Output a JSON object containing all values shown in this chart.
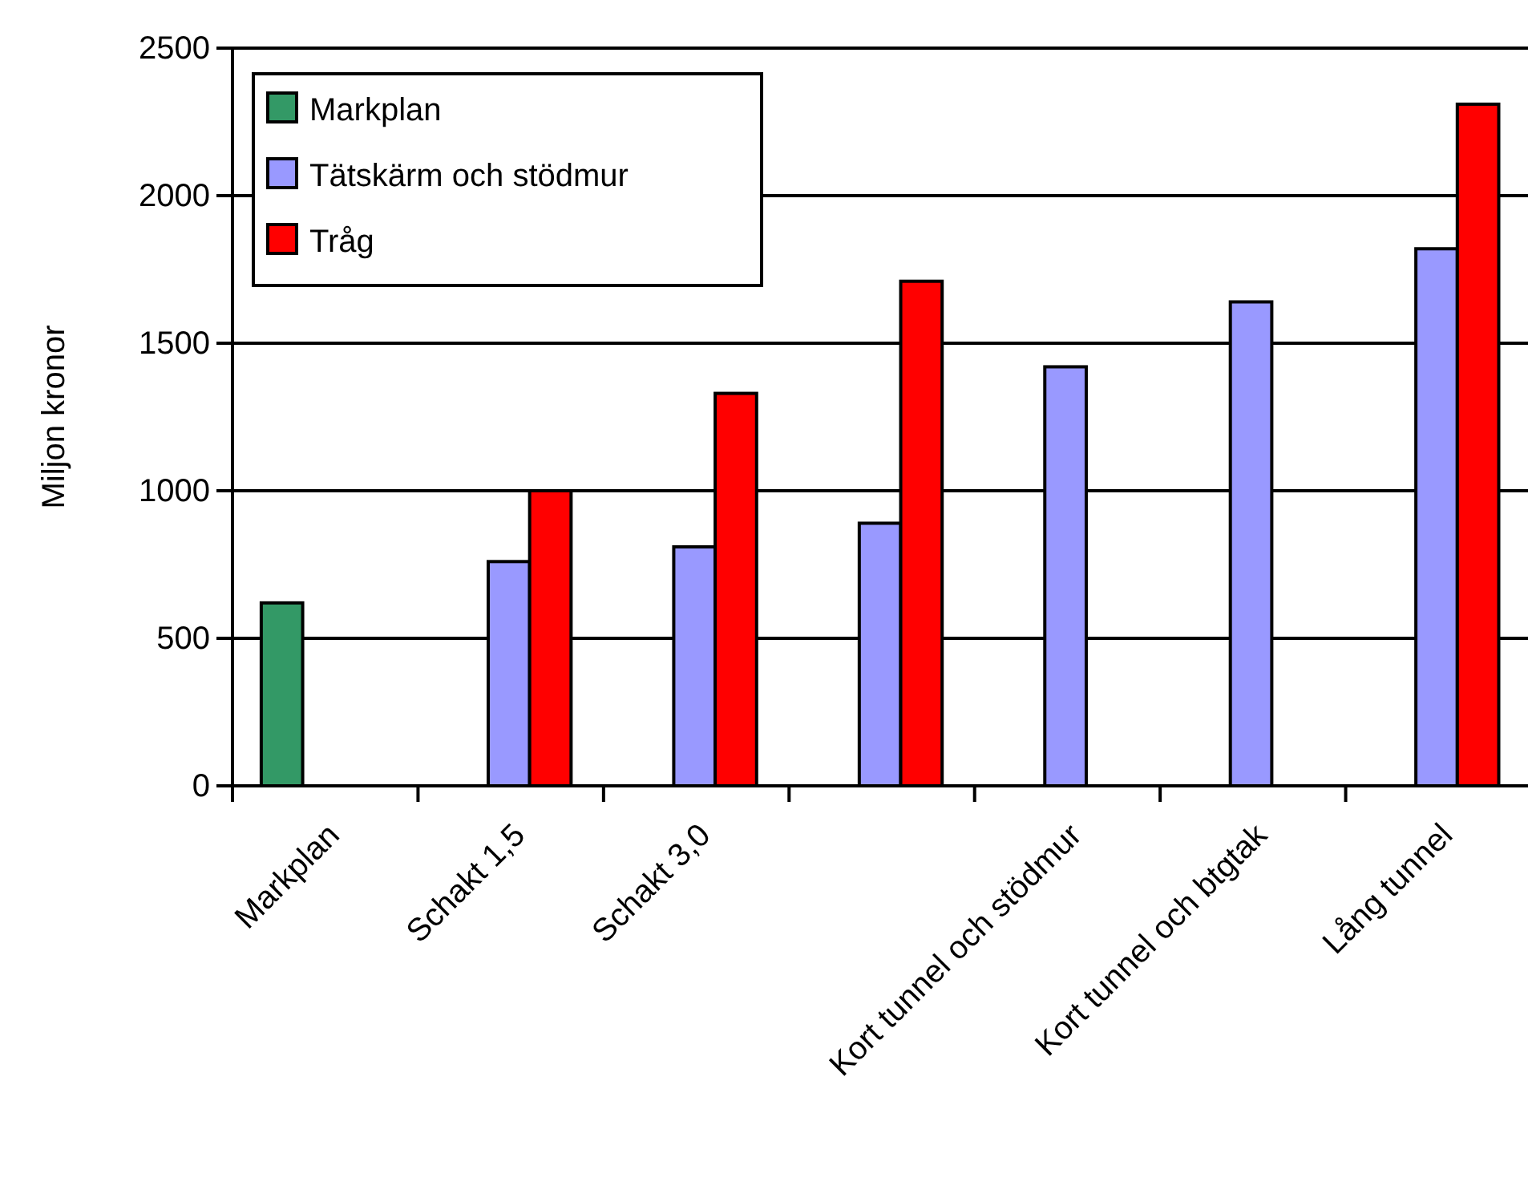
{
  "chart_data": {
    "type": "bar",
    "ylabel": "Miljon kronor",
    "categories": [
      "Markplan",
      "Schakt 1,5",
      "Schakt 3,0",
      null,
      "Kort tunnel och stödmur",
      "Kort tunnel och btgtak",
      "Lång tunnel"
    ],
    "series": [
      {
        "name": "Markplan",
        "color": "#339966",
        "values": [
          620,
          null,
          null,
          null,
          null,
          null,
          null
        ]
      },
      {
        "name": "Tätskärm och stödmur",
        "color": "#9999ff",
        "values": [
          null,
          760,
          810,
          890,
          1420,
          1640,
          1820
        ]
      },
      {
        "name": "Tråg",
        "color": "#ff0000",
        "values": [
          null,
          1000,
          1330,
          1710,
          null,
          null,
          2310
        ]
      }
    ],
    "ylim": [
      0,
      2500
    ],
    "yticks": [
      0,
      500,
      1000,
      1500,
      2000,
      2500
    ],
    "grid": "y",
    "legend": "top left"
  }
}
